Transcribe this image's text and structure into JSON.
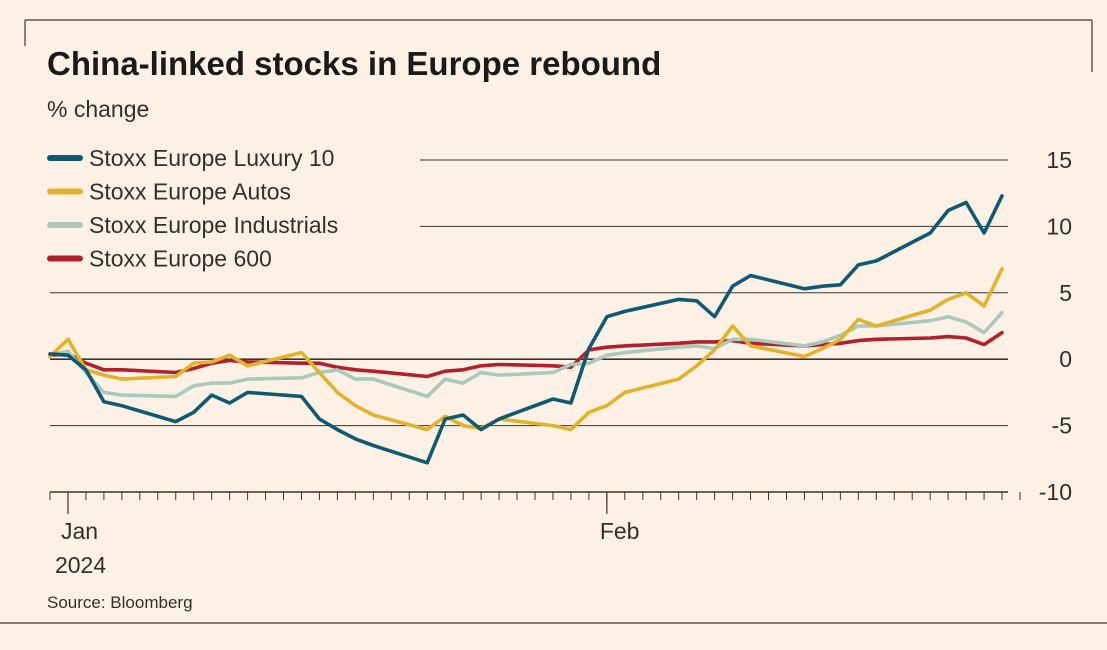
{
  "header": {
    "title": "China-linked stocks in Europe rebound",
    "subtitle": "% change"
  },
  "footer": {
    "source": "Source: Bloomberg"
  },
  "colors": {
    "background": "#fdf0e4",
    "Stoxx Europe Luxury 10": "#0f5a73",
    "Stoxx Europe Autos": "#e2b22a",
    "Stoxx Europe Industrials": "#a9c9bd",
    "Stoxx Europe 600": "#b0212b",
    "grid": "#3a3632"
  },
  "chart_data": {
    "type": "line",
    "title": "China-linked stocks in Europe rebound",
    "ylabel": "% change",
    "xlabel": "",
    "ylim": [
      -10,
      15
    ],
    "yticks": [
      15,
      10,
      5,
      0,
      -5,
      -10
    ],
    "ytick_labels": [
      "15",
      "10",
      "5",
      "0",
      "-5",
      "-10"
    ],
    "xlim": [
      "2024-01-01",
      "2024-02-24"
    ],
    "xtick_labels": [
      {
        "date": "2024-01-02",
        "label": "Jan",
        "sublabel": "2024"
      },
      {
        "date": "2024-02-01",
        "label": "Feb",
        "sublabel": ""
      }
    ],
    "legend_position": "top-left",
    "grid": true,
    "x": [
      "2024-01-01",
      "2024-01-02",
      "2024-01-03",
      "2024-01-04",
      "2024-01-05",
      "2024-01-08",
      "2024-01-09",
      "2024-01-10",
      "2024-01-11",
      "2024-01-12",
      "2024-01-15",
      "2024-01-16",
      "2024-01-17",
      "2024-01-18",
      "2024-01-19",
      "2024-01-22",
      "2024-01-23",
      "2024-01-24",
      "2024-01-25",
      "2024-01-26",
      "2024-01-29",
      "2024-01-30",
      "2024-01-31",
      "2024-02-01",
      "2024-02-02",
      "2024-02-05",
      "2024-02-06",
      "2024-02-07",
      "2024-02-08",
      "2024-02-09",
      "2024-02-12",
      "2024-02-13",
      "2024-02-14",
      "2024-02-15",
      "2024-02-16",
      "2024-02-19",
      "2024-02-20",
      "2024-02-21",
      "2024-02-22",
      "2024-02-23"
    ],
    "series": [
      {
        "name": "Stoxx Europe Luxury 10",
        "values": [
          0.4,
          0.3,
          -0.8,
          -3.2,
          -3.5,
          -4.7,
          -4.0,
          -2.7,
          -3.3,
          -2.5,
          -2.8,
          -4.5,
          -5.3,
          -6.0,
          -6.5,
          -7.8,
          -4.5,
          -4.2,
          -5.3,
          -4.5,
          -3.0,
          -3.3,
          0.8,
          3.2,
          3.6,
          4.5,
          4.4,
          3.2,
          5.5,
          6.3,
          5.3,
          5.5,
          5.6,
          7.1,
          7.4,
          9.5,
          11.2,
          11.8,
          9.5,
          12.3
        ]
      },
      {
        "name": "Stoxx Europe Autos",
        "values": [
          0.2,
          1.5,
          -0.8,
          -1.2,
          -1.5,
          -1.3,
          -0.3,
          -0.2,
          0.3,
          -0.5,
          0.5,
          -1.0,
          -2.5,
          -3.5,
          -4.2,
          -5.3,
          -4.3,
          -5.0,
          -5.2,
          -4.5,
          -5.0,
          -5.3,
          -4.0,
          -3.5,
          -2.5,
          -1.5,
          -0.5,
          0.7,
          2.5,
          1.0,
          0.2,
          0.8,
          1.5,
          3.0,
          2.5,
          3.7,
          4.5,
          5.0,
          4.0,
          6.8
        ]
      },
      {
        "name": "Stoxx Europe Industrials",
        "values": [
          0.3,
          0.6,
          -1.0,
          -2.5,
          -2.7,
          -2.8,
          -2.0,
          -1.8,
          -1.8,
          -1.5,
          -1.4,
          -1.0,
          -0.8,
          -1.5,
          -1.5,
          -2.8,
          -1.5,
          -1.8,
          -1.0,
          -1.2,
          -1.0,
          -0.4,
          -0.3,
          0.3,
          0.5,
          0.9,
          1.0,
          0.8,
          1.5,
          1.5,
          1.0,
          1.3,
          1.8,
          2.5,
          2.5,
          2.9,
          3.2,
          2.8,
          2.0,
          3.5
        ]
      },
      {
        "name": "Stoxx Europe 600",
        "values": [
          0.3,
          0.4,
          -0.3,
          -0.8,
          -0.8,
          -1.0,
          -0.7,
          -0.3,
          -0.1,
          -0.2,
          -0.3,
          -0.3,
          -0.6,
          -0.8,
          -0.9,
          -1.3,
          -0.9,
          -0.8,
          -0.5,
          -0.4,
          -0.5,
          -0.6,
          0.7,
          0.9,
          1.0,
          1.2,
          1.3,
          1.3,
          1.4,
          1.2,
          1.0,
          1.1,
          1.2,
          1.4,
          1.5,
          1.6,
          1.7,
          1.6,
          1.1,
          2.0
        ]
      }
    ]
  }
}
